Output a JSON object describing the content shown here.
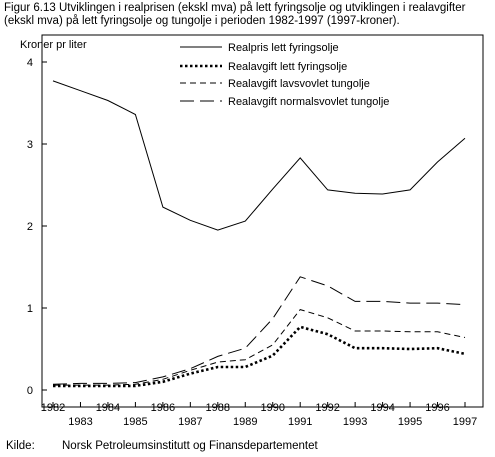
{
  "title": "Figur 6.13 Utviklingen i realprisen (ekskl mva) på lett fyringsolje og utviklingen i realavgifter\n(ekskl mva) på lett fyringsolje og tungolje  i perioden 1982-1997 (1997-kroner).",
  "source": {
    "label": "Kilde:",
    "text": "Norsk Petroleumsinstitutt og Finansdepartementet"
  },
  "chart_data": {
    "type": "line",
    "ylabel": "Kroner pr liter",
    "xlabel": "",
    "ylim": [
      0,
      4
    ],
    "yticks": [
      "0",
      "1",
      "2",
      "3",
      "4"
    ],
    "x": [
      "1982",
      "1983",
      "1984",
      "1985",
      "1986",
      "1987",
      "1988",
      "1989",
      "1990",
      "1991",
      "1992",
      "1993",
      "1994",
      "1995",
      "1996",
      "1997"
    ],
    "legend_position": "top-right",
    "series": [
      {
        "name": "Realpris lett fyringsolje",
        "style": "solid",
        "values": [
          3.77,
          3.65,
          3.53,
          3.36,
          2.23,
          2.07,
          1.95,
          2.06,
          2.45,
          2.83,
          2.44,
          2.4,
          2.39,
          2.44,
          2.78,
          3.07
        ]
      },
      {
        "name": "Realavgift lett fyringsolje",
        "style": "dotted",
        "values": [
          0.05,
          0.05,
          0.05,
          0.05,
          0.1,
          0.2,
          0.28,
          0.28,
          0.42,
          0.77,
          0.68,
          0.51,
          0.51,
          0.5,
          0.51,
          0.44
        ]
      },
      {
        "name": "Realavgift lavsvovlet tungolje",
        "style": "short-dash",
        "values": [
          0.06,
          0.06,
          0.06,
          0.07,
          0.13,
          0.24,
          0.34,
          0.37,
          0.55,
          0.98,
          0.88,
          0.72,
          0.72,
          0.71,
          0.71,
          0.64
        ]
      },
      {
        "name": "Realavgift normalsvovlet tungolje",
        "style": "long-dash",
        "values": [
          0.07,
          0.08,
          0.08,
          0.09,
          0.16,
          0.26,
          0.41,
          0.51,
          0.87,
          1.38,
          1.27,
          1.08,
          1.08,
          1.06,
          1.06,
          1.04
        ]
      }
    ]
  }
}
